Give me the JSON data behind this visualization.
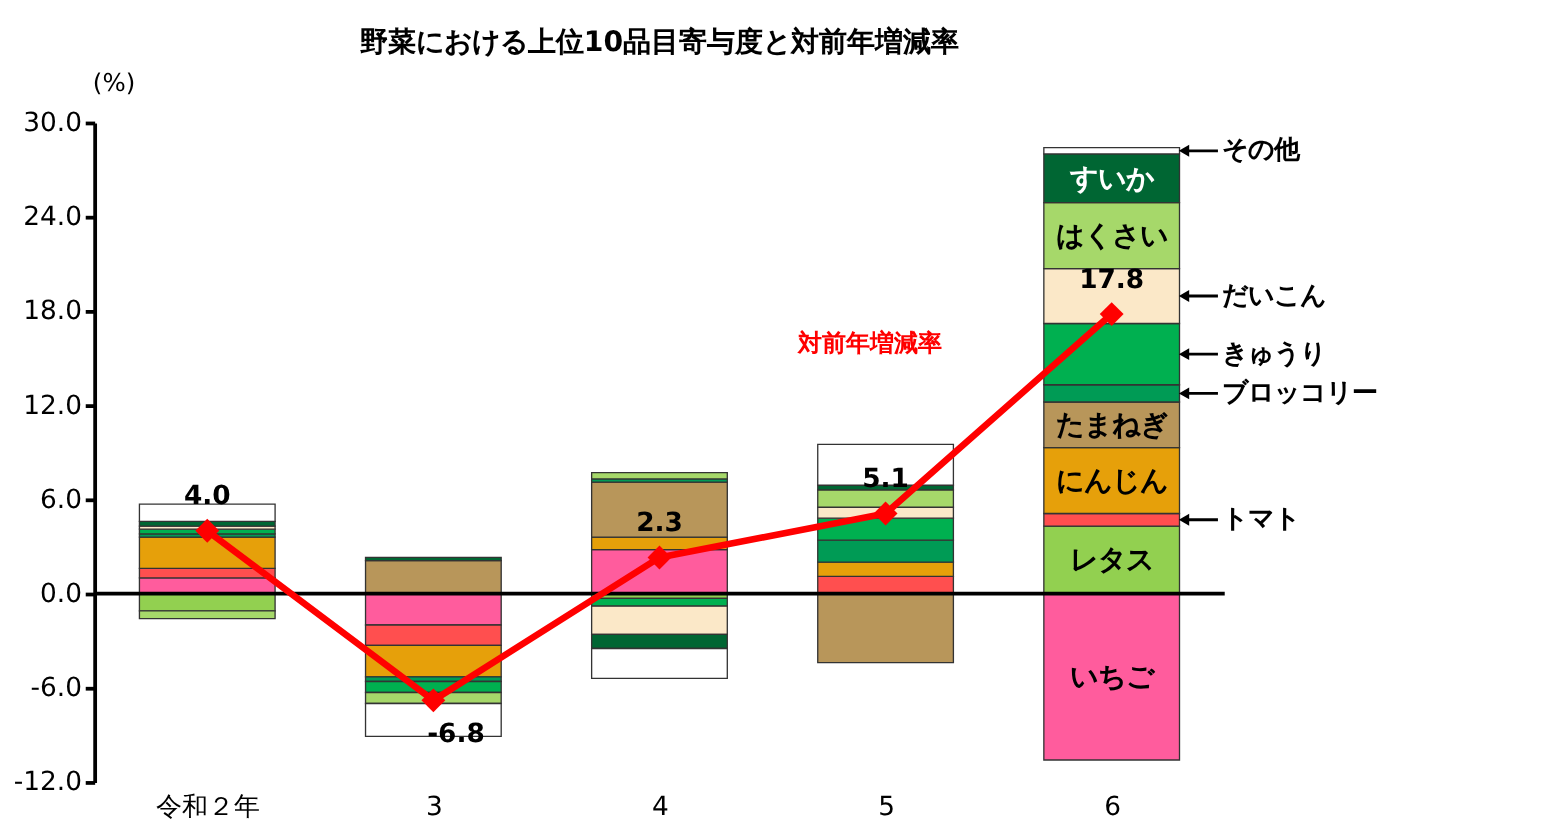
{
  "chart_data": {
    "type": "bar",
    "stacked": true,
    "title": "野菜における上位10品目寄与度と対前年増減率",
    "ylabel": "(%)",
    "categories": [
      "令和２年",
      "3",
      "4",
      "5",
      "6"
    ],
    "ylim": [
      -12,
      30
    ],
    "yticks": [
      {
        "value": -12,
        "label": "-12.0"
      },
      {
        "value": -6,
        "label": "-6.0"
      },
      {
        "value": 0,
        "label": "0.0"
      },
      {
        "value": 6,
        "label": "6.0"
      },
      {
        "value": 12,
        "label": "12.0"
      },
      {
        "value": 18,
        "label": "18.0"
      },
      {
        "value": 24,
        "label": "24.0"
      },
      {
        "value": 30,
        "label": "30.0"
      }
    ],
    "ref_lines": [
      {
        "axis": "y",
        "value": 0,
        "color": "#000000"
      }
    ],
    "series": [
      {
        "name": "いちご",
        "color": "#ff5c9d",
        "values": [
          1.0,
          -2.0,
          2.8,
          0,
          -10.6
        ]
      },
      {
        "name": "レタス",
        "color": "#92d050",
        "values": [
          -1.1,
          0,
          -0.3,
          0,
          4.3
        ]
      },
      {
        "name": "トマト",
        "color": "#ff4f4f",
        "values": [
          0.6,
          -1.3,
          0,
          1.1,
          0.8
        ]
      },
      {
        "name": "にんじん",
        "color": "#e6a00a",
        "values": [
          2.0,
          -2.0,
          0.8,
          0.9,
          4.2
        ]
      },
      {
        "name": "たまねぎ",
        "color": "#b8965a",
        "values": [
          0,
          2.1,
          3.5,
          -4.4,
          2.9
        ]
      },
      {
        "name": "ブロッコリー",
        "color": "#009b55",
        "values": [
          0.2,
          -0.3,
          0.2,
          1.4,
          1.1
        ]
      },
      {
        "name": "きゅうり",
        "color": "#00b050",
        "values": [
          0.3,
          -0.7,
          -0.5,
          1.4,
          3.9
        ]
      },
      {
        "name": "だいこん",
        "color": "#fbe8c8",
        "values": [
          0.2,
          0,
          -1.8,
          0.7,
          3.5
        ]
      },
      {
        "name": "はくさい",
        "color": "#a6d86a",
        "values": [
          -0.5,
          -0.7,
          0.4,
          1.1,
          4.2
        ]
      },
      {
        "name": "すいか",
        "color": "#006633",
        "values": [
          0.3,
          0.2,
          -0.9,
          0.3,
          3.1
        ]
      },
      {
        "name": "その他",
        "color": "#ffffff",
        "values": [
          1.1,
          -2.1,
          -1.9,
          2.6,
          0.4
        ]
      },
      {
        "name": "対前年増減率",
        "type": "line",
        "color": "#ff0000",
        "marker": "diamond",
        "line_style": "solid",
        "values": [
          4.0,
          -6.8,
          2.3,
          5.1,
          17.8
        ],
        "value_labels": [
          "4.0",
          "-6.8",
          "2.3",
          "5.1",
          "17.8"
        ]
      }
    ]
  }
}
